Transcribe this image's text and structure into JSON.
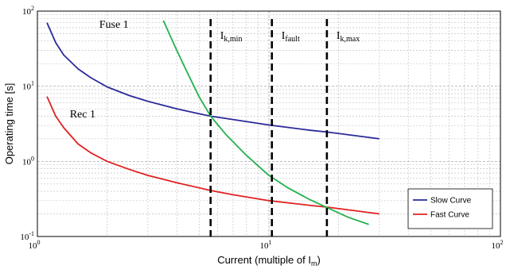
{
  "chart_data": {
    "type": "line",
    "xlabel": "Current (multiple of I",
    "xlabel_sub": "m",
    "xlabel_tail": ")",
    "ylabel": "Operating time [s]",
    "xscale": "log",
    "yscale": "log",
    "xlim": [
      1,
      100
    ],
    "ylim": [
      0.1,
      100
    ],
    "x_ticks": [
      {
        "value": 1,
        "base": "10",
        "exp": "0"
      },
      {
        "value": 10,
        "base": "10",
        "exp": "1"
      },
      {
        "value": 100,
        "base": "10",
        "exp": "2"
      }
    ],
    "y_ticks": [
      {
        "value": 0.1,
        "base": "10",
        "exp": "-1"
      },
      {
        "value": 1,
        "base": "10",
        "exp": "0"
      },
      {
        "value": 10,
        "base": "10",
        "exp": "1"
      },
      {
        "value": 100,
        "base": "10",
        "exp": "2"
      }
    ],
    "grid": true,
    "legend_position": "bottom-right",
    "series": [
      {
        "name": "Slow Curve",
        "color": "#2a2a9a",
        "points": [
          [
            1.1,
            70
          ],
          [
            1.2,
            38
          ],
          [
            1.3,
            26
          ],
          [
            1.5,
            17
          ],
          [
            1.7,
            13
          ],
          [
            2,
            9.8
          ],
          [
            2.5,
            7.5
          ],
          [
            3,
            6.3
          ],
          [
            4,
            5
          ],
          [
            5,
            4.3
          ],
          [
            5.6,
            4
          ],
          [
            7,
            3.6
          ],
          [
            10,
            3.05
          ],
          [
            15,
            2.6
          ],
          [
            18,
            2.45
          ],
          [
            25,
            2.15
          ],
          [
            30,
            2
          ]
        ]
      },
      {
        "name": "Fast Curve",
        "color": "#e02020",
        "points": [
          [
            1.1,
            7.3
          ],
          [
            1.2,
            4
          ],
          [
            1.3,
            2.8
          ],
          [
            1.5,
            1.7
          ],
          [
            1.7,
            1.3
          ],
          [
            2,
            1
          ],
          [
            2.5,
            0.78
          ],
          [
            3,
            0.65
          ],
          [
            4,
            0.52
          ],
          [
            5.6,
            0.41
          ],
          [
            7,
            0.36
          ],
          [
            10,
            0.3
          ],
          [
            15,
            0.26
          ],
          [
            18,
            0.245
          ],
          [
            25,
            0.215
          ],
          [
            30,
            0.2
          ]
        ]
      },
      {
        "name": "",
        "color": "#22b24c",
        "points": [
          [
            3.5,
            75
          ],
          [
            4,
            30
          ],
          [
            4.5,
            14
          ],
          [
            5,
            7.2
          ],
          [
            5.6,
            4
          ],
          [
            6.5,
            2.3
          ],
          [
            8,
            1.2
          ],
          [
            10,
            0.65
          ],
          [
            12,
            0.45
          ],
          [
            15,
            0.31
          ],
          [
            18,
            0.24
          ],
          [
            22,
            0.18
          ],
          [
            27,
            0.145
          ]
        ]
      }
    ],
    "vlines": [
      {
        "x": 5.6,
        "label": "I",
        "sub": "k,min"
      },
      {
        "x": 10.3,
        "label": "I",
        "sub": "fault"
      },
      {
        "x": 17.8,
        "label": "I",
        "sub": "k,max"
      }
    ],
    "annotations": [
      {
        "text": "Fuse 1",
        "x": 1.85,
        "y": 60
      },
      {
        "text": "Rec 1",
        "x": 1.38,
        "y": 3.85
      }
    ]
  }
}
